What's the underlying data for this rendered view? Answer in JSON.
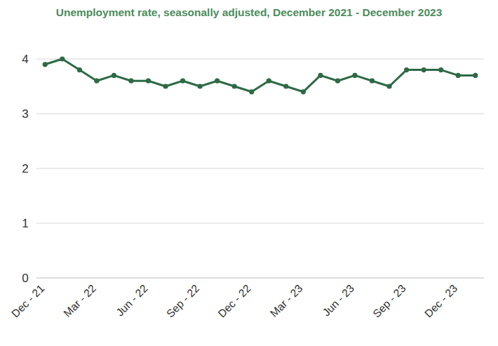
{
  "chart_data": {
    "type": "line",
    "title": "Unemployment rate, seasonally adjusted, December 2021 - December 2023",
    "categories": [
      "Dec - 21",
      null,
      null,
      "Mar - 22",
      null,
      null,
      "Jun - 22",
      null,
      null,
      "Sep - 22",
      null,
      null,
      "Dec - 22",
      null,
      null,
      "Mar - 23",
      null,
      null,
      "Jun - 23",
      null,
      null,
      "Sep - 23",
      null,
      null,
      "Dec - 23",
      null
    ],
    "series": [
      {
        "name": "Unemployment rate",
        "color": "#2d6a45",
        "marker": "circle",
        "values": [
          3.9,
          4.0,
          3.8,
          3.6,
          3.7,
          3.6,
          3.6,
          3.5,
          3.6,
          3.5,
          3.6,
          3.5,
          3.4,
          3.6,
          3.5,
          3.4,
          3.7,
          3.6,
          3.7,
          3.6,
          3.5,
          3.8,
          3.8,
          3.8,
          3.7,
          3.7
        ]
      }
    ],
    "ylim": [
      0,
      4
    ],
    "yticks": [
      0,
      1,
      2,
      3,
      4
    ],
    "grid": true
  }
}
